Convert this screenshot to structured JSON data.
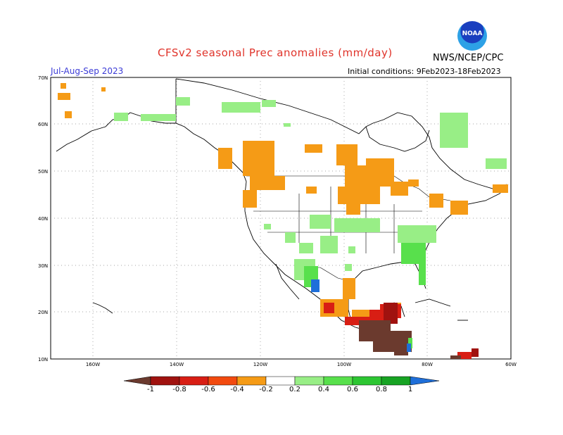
{
  "header": {
    "title": "CFSv2 seasonal Prec anomalies (mm/day)",
    "season": "Jul-Aug-Sep 2023",
    "initial_conditions": "Initial conditions: 9Feb2023-18Feb2023",
    "org": "NWS/NCEP/CPC",
    "logo_text": "NOAA"
  },
  "map": {
    "lat_labels": [
      "70N",
      "60N",
      "50N",
      "40N",
      "30N",
      "20N",
      "10N"
    ],
    "lon_labels": [
      "160W",
      "140W",
      "120W",
      "100W",
      "80W",
      "60W"
    ],
    "extent": {
      "lon_min": -170,
      "lon_max": -60,
      "lat_min": 10,
      "lat_max": 70
    }
  },
  "legend": {
    "ticks": [
      "-1",
      "-0.8",
      "-0.6",
      "-0.4",
      "-0.2",
      "0.2",
      "0.4",
      "0.6",
      "0.8",
      "1"
    ],
    "colors": {
      "below_min": "#6b3a2e",
      "-1_-0.8": "#a0120f",
      "-0.8_-0.6": "#d81e14",
      "-0.6_-0.4": "#f24a0f",
      "-0.4_-0.2": "#f59b16",
      "-0.2_0.2": "#ffffff",
      "0.2_0.4": "#98ee86",
      "0.4_0.6": "#58e04c",
      "0.6_0.8": "#2dc632",
      "0.8_1": "#17a323",
      "above_max": "#1f6fd9"
    }
  }
}
